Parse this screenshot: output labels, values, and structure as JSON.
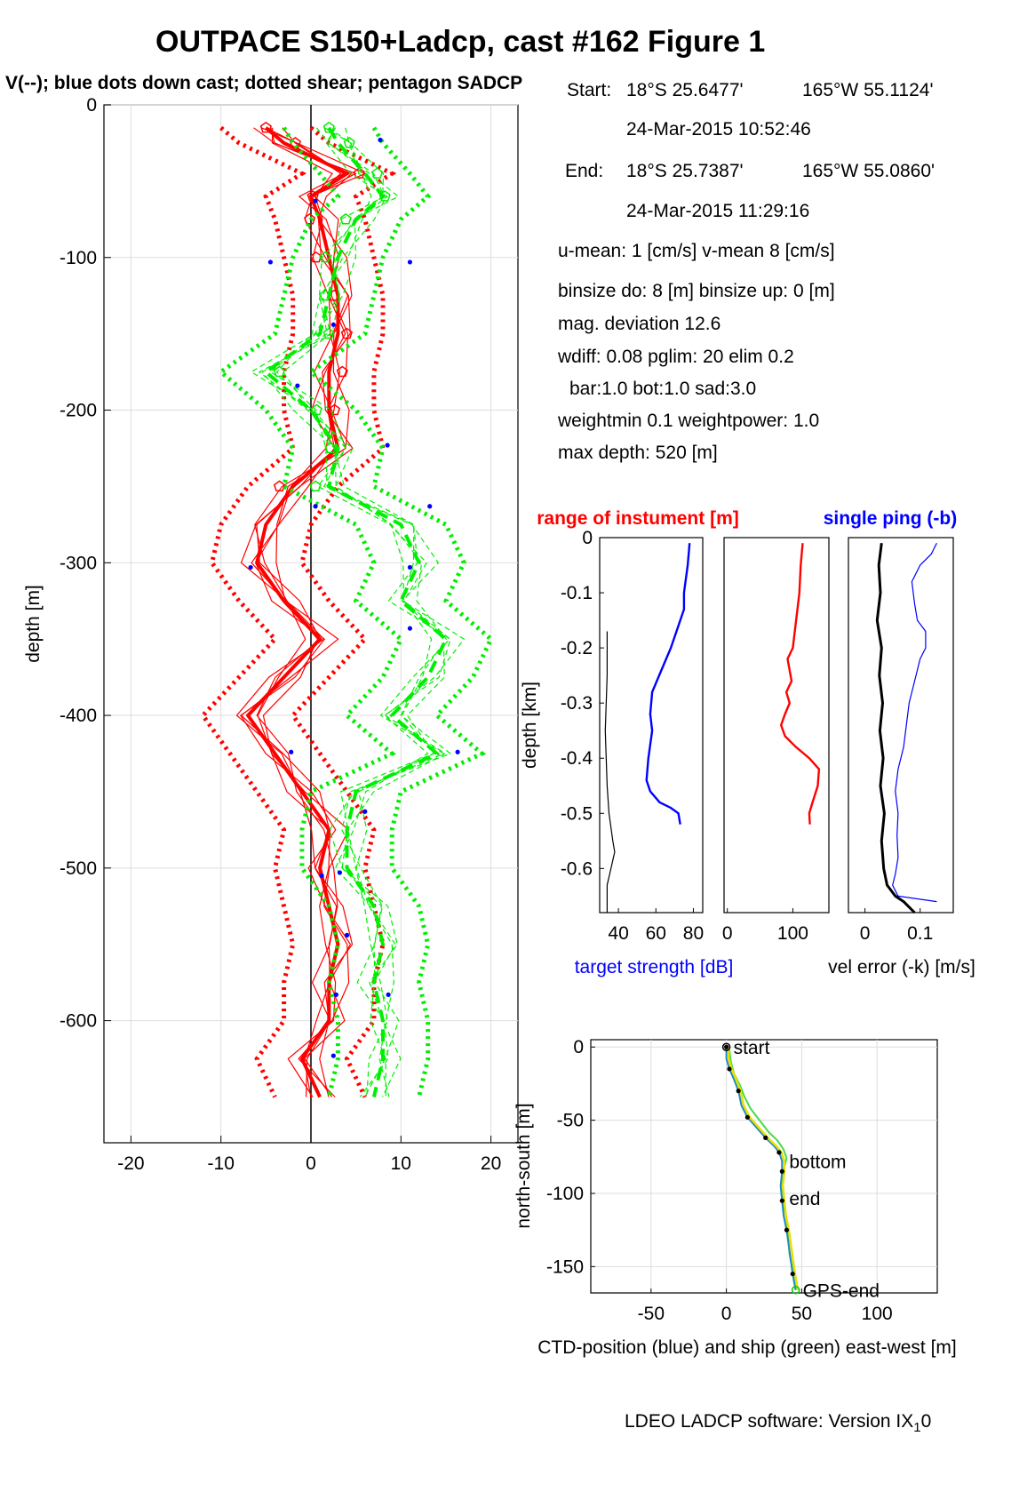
{
  "figure": {
    "title": "OUTPACE S150+Ladcp, cast #162  Figure 1",
    "subtitle": "V(--); blue dots down cast; dotted shear; pentagon SADCP",
    "footer": "LDEO LADCP software: Version IX",
    "footer_sub": "1",
    "footer_tail": "0"
  },
  "info": {
    "start_label": "Start:",
    "start_lat": "18°S 25.6477'",
    "start_lon": "165°W 55.1124'",
    "start_time": "24-Mar-2015 10:52:46",
    "end_label": "End:",
    "end_lat": "18°S 25.7387'",
    "end_lon": "165°W 55.0860'",
    "end_time": "24-Mar-2015 11:29:16",
    "u_mean": "u-mean:   1 [cm/s]    v-mean   8 [cm/s]",
    "binsize": "binsize do: 8 [m]  binsize up:  0 [m]",
    "mag_dev": "mag. deviation 12.6",
    "wdiff": "wdiff: 0.08  pglim: 20  elim 0.2",
    "bar": "bar:1.0 bot:1.0 sad:3.0",
    "weight": "weightmin 0.1  weightpower: 1.0",
    "max_depth": "max depth: 520 [m]"
  },
  "colors": {
    "u": "#ff0000",
    "v": "#00ee00",
    "dots": "#0000ff",
    "target": "#0000ff",
    "range": "#ff0000",
    "velerr": "#000000",
    "singleping": "#0000ff"
  },
  "chart_data": [
    {
      "type": "line",
      "ylabel": "depth [m]",
      "xlim": [
        -23,
        23
      ],
      "ylim": [
        -680,
        0
      ],
      "xticks": [
        "-20",
        "-10",
        "0",
        "10",
        "20"
      ],
      "yticks": [
        "0",
        "-100",
        "-200",
        "-300",
        "-400",
        "-500",
        "-600"
      ],
      "grid": true,
      "series": [
        {
          "component": "u",
          "depth": [
            -15,
            -25,
            -45,
            -60,
            -75,
            -100,
            -125,
            -150,
            -175,
            -200,
            -225,
            -250,
            -275,
            -300,
            -325,
            -350,
            -375,
            -400,
            -425,
            -450,
            -475,
            -500,
            -525,
            -550,
            -575,
            -600,
            -625,
            -650
          ],
          "values": [
            -5,
            -3,
            4,
            0,
            1,
            2,
            3,
            3,
            2,
            2,
            3,
            -2,
            -5,
            -6,
            -3,
            1,
            -3,
            -7,
            -4,
            -1,
            2,
            1,
            2,
            3,
            2,
            2,
            -1,
            1
          ]
        },
        {
          "component": "v",
          "depth": [
            -15,
            -25,
            -45,
            -60,
            -75,
            -100,
            -125,
            -150,
            -175,
            -200,
            -225,
            -250,
            -275,
            -300,
            -325,
            -350,
            -375,
            -400,
            -425,
            -450,
            -475,
            -500,
            -525,
            -550,
            -575,
            -600,
            -625,
            -650
          ],
          "values": [
            2,
            3,
            6,
            8,
            5,
            3,
            2,
            1,
            -5,
            0,
            3,
            2,
            10,
            12,
            10,
            15,
            13,
            9,
            14,
            5,
            4,
            4,
            7,
            8,
            7,
            8,
            8,
            7
          ]
        }
      ],
      "down_cast_dots": [
        {
          "x": 7.7,
          "y": -23
        },
        {
          "x": 0.5,
          "y": -63
        },
        {
          "x": -4.5,
          "y": -103
        },
        {
          "x": 11,
          "y": -103
        },
        {
          "x": 2.5,
          "y": -144
        },
        {
          "x": -1.5,
          "y": -184
        },
        {
          "x": 8.5,
          "y": -223
        },
        {
          "x": 0.5,
          "y": -263
        },
        {
          "x": 13.2,
          "y": -263
        },
        {
          "x": -6.7,
          "y": -303
        },
        {
          "x": 11,
          "y": -303
        },
        {
          "x": 11,
          "y": -343
        },
        {
          "x": -2.2,
          "y": -424
        },
        {
          "x": 16.3,
          "y": -424
        },
        {
          "x": 6,
          "y": -463
        },
        {
          "x": 1.2,
          "y": -505
        },
        {
          "x": 3.2,
          "y": -503
        },
        {
          "x": 4,
          "y": -544
        },
        {
          "x": 8.6,
          "y": -583
        },
        {
          "x": 2.8,
          "y": -583
        },
        {
          "x": 2.5,
          "y": -623
        }
      ]
    },
    {
      "type": "line",
      "title": "range of instument [m]",
      "xlabel": "target strength [dB]",
      "ylabel": "depth [km]",
      "xlim": [
        30,
        85
      ],
      "ylim": [
        -0.68,
        0
      ],
      "xticks": [
        "40",
        "60",
        "80"
      ],
      "yticks": [
        "0",
        "-0.1",
        "-0.2",
        "-0.3",
        "-0.4",
        "-0.5",
        "-0.6"
      ],
      "series": [
        {
          "name": "target strength",
          "x": [
            78,
            77,
            75,
            75,
            72,
            68,
            63,
            58,
            57,
            58,
            56,
            55,
            57,
            62,
            68,
            72,
            73
          ],
          "y": [
            -0.01,
            -0.05,
            -0.1,
            -0.13,
            -0.16,
            -0.2,
            -0.24,
            -0.28,
            -0.32,
            -0.35,
            -0.4,
            -0.44,
            -0.46,
            -0.48,
            -0.49,
            -0.5,
            -0.52
          ]
        },
        {
          "name": "thin black",
          "x": [
            34,
            34,
            33,
            34,
            35,
            37,
            38,
            36,
            34,
            34,
            34
          ],
          "y": [
            -0.17,
            -0.25,
            -0.35,
            -0.45,
            -0.5,
            -0.55,
            -0.57,
            -0.6,
            -0.63,
            -0.66,
            -0.68
          ]
        }
      ]
    },
    {
      "type": "line",
      "xlim": [
        -5,
        155
      ],
      "ylim": [
        -0.68,
        0
      ],
      "xticks": [
        "0",
        "100"
      ],
      "series": [
        {
          "name": "range",
          "x": [
            115,
            112,
            110,
            105,
            100,
            92,
            98,
            90,
            95,
            88,
            82,
            88,
            105,
            125,
            140,
            138,
            130,
            125,
            126
          ],
          "y": [
            -0.01,
            -0.05,
            -0.1,
            -0.15,
            -0.2,
            -0.22,
            -0.26,
            -0.28,
            -0.3,
            -0.32,
            -0.34,
            -0.36,
            -0.38,
            -0.4,
            -0.42,
            -0.45,
            -0.48,
            -0.5,
            -0.52
          ]
        }
      ]
    },
    {
      "type": "line",
      "title": "single ping (-b)",
      "xlabel": "vel error (-k) [m/s]",
      "xlim": [
        -0.03,
        0.16
      ],
      "ylim": [
        -0.68,
        0
      ],
      "xticks": [
        "0",
        "0.1"
      ],
      "series": [
        {
          "name": "vel error",
          "x": [
            0.03,
            0.025,
            0.028,
            0.022,
            0.03,
            0.026,
            0.032,
            0.027,
            0.033,
            0.028,
            0.035,
            0.03,
            0.034,
            0.04,
            0.055,
            0.07,
            0.09
          ],
          "y": [
            -0.01,
            -0.05,
            -0.1,
            -0.15,
            -0.2,
            -0.25,
            -0.3,
            -0.35,
            -0.4,
            -0.45,
            -0.5,
            -0.55,
            -0.6,
            -0.63,
            -0.65,
            -0.66,
            -0.68
          ]
        },
        {
          "name": "single ping",
          "x": [
            0.13,
            0.12,
            0.1,
            0.085,
            0.09,
            0.095,
            0.11,
            0.11,
            0.1,
            0.09,
            0.08,
            0.075,
            0.07,
            0.06,
            0.055,
            0.06,
            0.058,
            0.06,
            0.055,
            0.05,
            0.06,
            0.13
          ],
          "y": [
            -0.01,
            -0.03,
            -0.05,
            -0.08,
            -0.12,
            -0.15,
            -0.17,
            -0.2,
            -0.22,
            -0.26,
            -0.3,
            -0.34,
            -0.38,
            -0.42,
            -0.46,
            -0.5,
            -0.54,
            -0.58,
            -0.61,
            -0.63,
            -0.65,
            -0.66
          ]
        }
      ]
    },
    {
      "type": "line",
      "xlabel": "CTD-position (blue) and ship (green) east-west [m]",
      "ylabel": "north-south [m]",
      "xlim": [
        -90,
        140
      ],
      "ylim": [
        -168,
        5
      ],
      "xticks": [
        "-50",
        "0",
        "50",
        "100"
      ],
      "yticks": [
        "0",
        "-50",
        "-100",
        "-150"
      ],
      "grid": true,
      "annotations": [
        {
          "text": "start",
          "x": 0,
          "y": 0
        },
        {
          "text": "bottom",
          "x": 37,
          "y": -78
        },
        {
          "text": "end",
          "x": 37,
          "y": -103
        },
        {
          "text": "GPS-end",
          "x": 46,
          "y": -166
        }
      ],
      "series": [
        {
          "name": "CTD",
          "x": [
            0,
            0,
            2,
            5,
            8,
            10,
            14,
            20,
            26,
            32,
            35,
            37,
            37,
            36,
            37,
            38,
            40,
            42,
            44,
            46
          ],
          "y": [
            0,
            -8,
            -15,
            -22,
            -30,
            -40,
            -48,
            -55,
            -62,
            -68,
            -72,
            -78,
            -85,
            -95,
            -105,
            -115,
            -125,
            -140,
            -155,
            -166
          ]
        },
        {
          "name": "ship",
          "x": [
            2,
            3,
            5,
            9,
            12,
            16,
            22,
            28,
            34,
            38,
            40,
            38,
            36,
            38,
            40,
            41,
            42,
            44,
            45,
            46
          ],
          "y": [
            -2,
            -10,
            -18,
            -26,
            -34,
            -42,
            -50,
            -58,
            -64,
            -70,
            -76,
            -84,
            -95,
            -108,
            -118,
            -130,
            -142,
            -152,
            -160,
            -166
          ]
        }
      ]
    }
  ]
}
